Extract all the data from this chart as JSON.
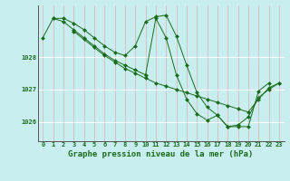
{
  "xlabel": "Graphe pression niveau de la mer (hPa)",
  "hours": [
    0,
    1,
    2,
    3,
    4,
    5,
    6,
    7,
    8,
    9,
    10,
    11,
    12,
    13,
    14,
    15,
    16,
    17,
    18,
    19,
    20,
    21,
    22,
    23
  ],
  "line1": [
    1028.6,
    1029.2,
    1029.2,
    1029.05,
    1028.85,
    1028.6,
    1028.35,
    1028.15,
    1028.05,
    1028.35,
    1029.1,
    1029.25,
    1029.3,
    1028.65,
    1027.75,
    1026.9,
    1026.45,
    1026.2,
    1025.85,
    1025.85,
    1025.85,
    1026.95,
    1027.2,
    null
  ],
  "line2": [
    null,
    1029.2,
    1029.1,
    1028.85,
    1028.6,
    1028.35,
    1028.1,
    1027.9,
    1027.75,
    1027.6,
    1027.45,
    1029.2,
    1028.6,
    1027.45,
    1026.7,
    1026.25,
    1026.05,
    1026.2,
    1025.85,
    1025.9,
    1026.15,
    1026.75,
    1027.0,
    1027.2
  ],
  "line3": [
    null,
    null,
    null,
    1028.8,
    1028.55,
    1028.3,
    1028.05,
    1027.85,
    1027.65,
    1027.5,
    1027.35,
    1027.2,
    1027.1,
    1027.0,
    1026.9,
    1026.8,
    1026.7,
    1026.6,
    1026.5,
    1026.4,
    1026.3,
    1026.7,
    1027.05,
    1027.2
  ],
  "ylim": [
    1025.4,
    1029.6
  ],
  "yticks": [
    1026,
    1027,
    1028
  ],
  "xticks": [
    0,
    1,
    2,
    3,
    4,
    5,
    6,
    7,
    8,
    9,
    10,
    11,
    12,
    13,
    14,
    15,
    16,
    17,
    18,
    19,
    20,
    21,
    22,
    23
  ],
  "line_color": "#1a6b1a",
  "marker_color": "#1a6b1a",
  "bg_color": "#c8eef0",
  "grid_color_v": "#d8b0b0",
  "grid_color_h": "#ffffff",
  "tick_label_fontsize": 5.0,
  "xlabel_fontsize": 6.5,
  "marker": "D",
  "marker_size": 2.0,
  "linewidth": 0.7
}
